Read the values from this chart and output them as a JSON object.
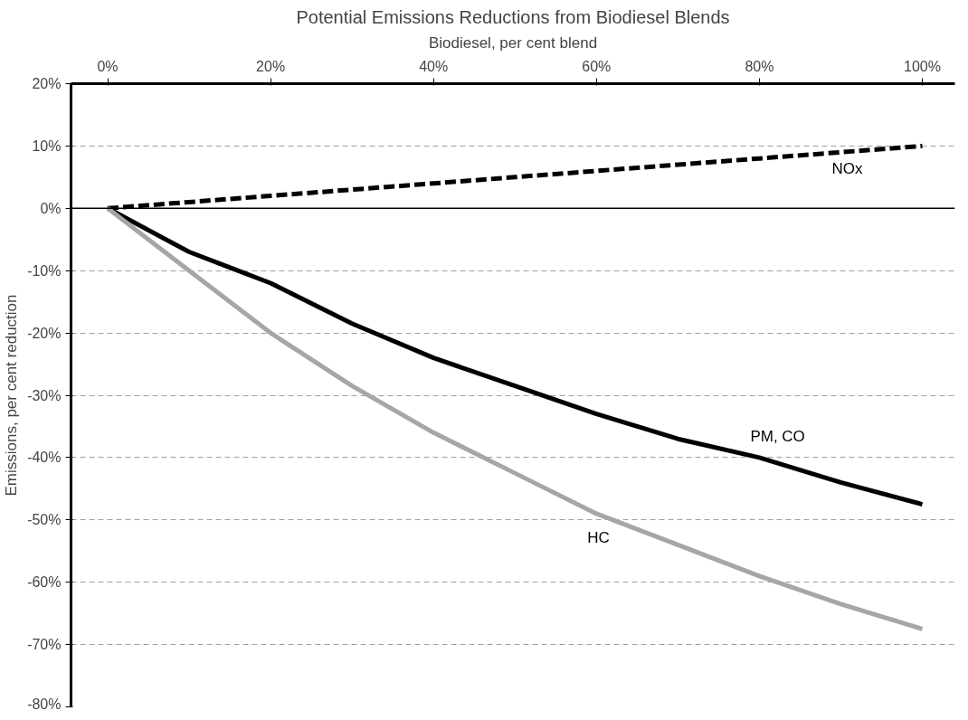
{
  "chart_data": {
    "type": "line",
    "title": "Potential Emissions Reductions from Biodiesel Blends",
    "xlabel": "Biodiesel, per cent blend",
    "ylabel": "Emissions, per cent reduction",
    "x": [
      0,
      10,
      20,
      30,
      40,
      50,
      60,
      70,
      80,
      90,
      100
    ],
    "series": [
      {
        "name": "NOx",
        "color": "#000000",
        "line_style": "dashed",
        "values": [
          0,
          1,
          2,
          3,
          4,
          5,
          6,
          7,
          8,
          9,
          10
        ]
      },
      {
        "name": "PM, CO",
        "color": "#000000",
        "line_style": "solid",
        "values": [
          0,
          -7,
          -12,
          -18.5,
          -24,
          -28.5,
          -33,
          -37,
          -40,
          -44,
          -47.5
        ]
      },
      {
        "name": "HC",
        "color": "#a6a6a6",
        "line_style": "solid",
        "values": [
          0,
          -10,
          -20,
          -28.5,
          -36,
          -42.5,
          -49,
          -54,
          -59,
          -63.5,
          -67.5
        ]
      }
    ],
    "xlim": [
      -4.5,
      104
    ],
    "ylim": [
      -80,
      20
    ],
    "xticks": [
      {
        "value": 0,
        "label": "0%"
      },
      {
        "value": 20,
        "label": "20%"
      },
      {
        "value": 40,
        "label": "40%"
      },
      {
        "value": 60,
        "label": "60%"
      },
      {
        "value": 80,
        "label": "80%"
      },
      {
        "value": 100,
        "label": "100%"
      }
    ],
    "yticks": [
      {
        "value": 20,
        "label": "20%"
      },
      {
        "value": 10,
        "label": "10%"
      },
      {
        "value": 0,
        "label": "0%"
      },
      {
        "value": -10,
        "label": "-10%"
      },
      {
        "value": -20,
        "label": "-20%"
      },
      {
        "value": -30,
        "label": "-30%"
      },
      {
        "value": -40,
        "label": "-40%"
      },
      {
        "value": -50,
        "label": "-50%"
      },
      {
        "value": -60,
        "label": "-60%"
      },
      {
        "value": -70,
        "label": "-70%"
      },
      {
        "value": -80,
        "label": "-80%"
      }
    ],
    "grid": "y",
    "marker": "none",
    "ref_lines": [
      {
        "axis": "y",
        "value": 0,
        "color": "#000000"
      }
    ]
  }
}
